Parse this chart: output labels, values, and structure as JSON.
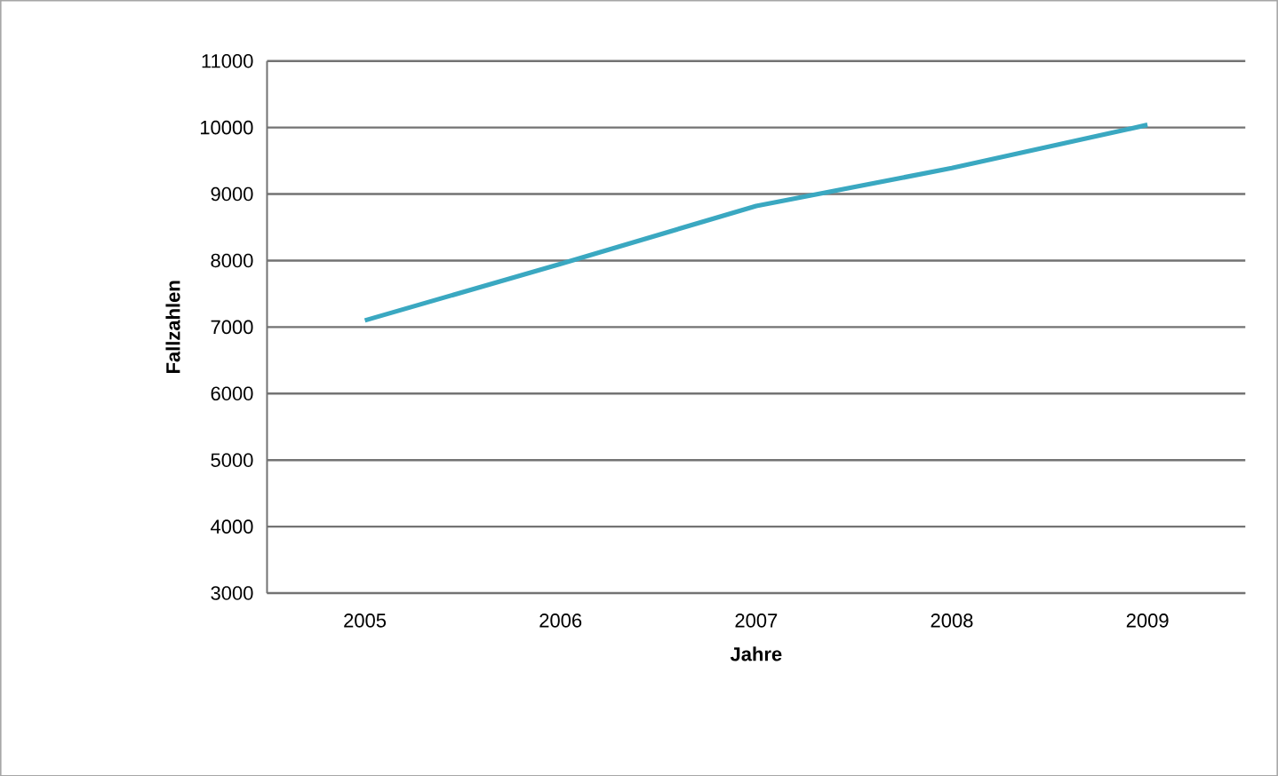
{
  "chart_data": {
    "type": "line",
    "xlabel": "Jahre",
    "ylabel": "Fallzahlen",
    "categories": [
      "2005",
      "2006",
      "2007",
      "2008",
      "2009"
    ],
    "series": [
      {
        "color": "#3aa8c1",
        "values": [
          7100,
          7950,
          8820,
          9390,
          10040
        ]
      }
    ],
    "ylim": [
      3000,
      11000
    ],
    "yticks": [
      3000,
      4000,
      5000,
      6000,
      7000,
      8000,
      9000,
      10000,
      11000
    ],
    "grid": "y",
    "marker": "none",
    "line_style": "solid"
  }
}
